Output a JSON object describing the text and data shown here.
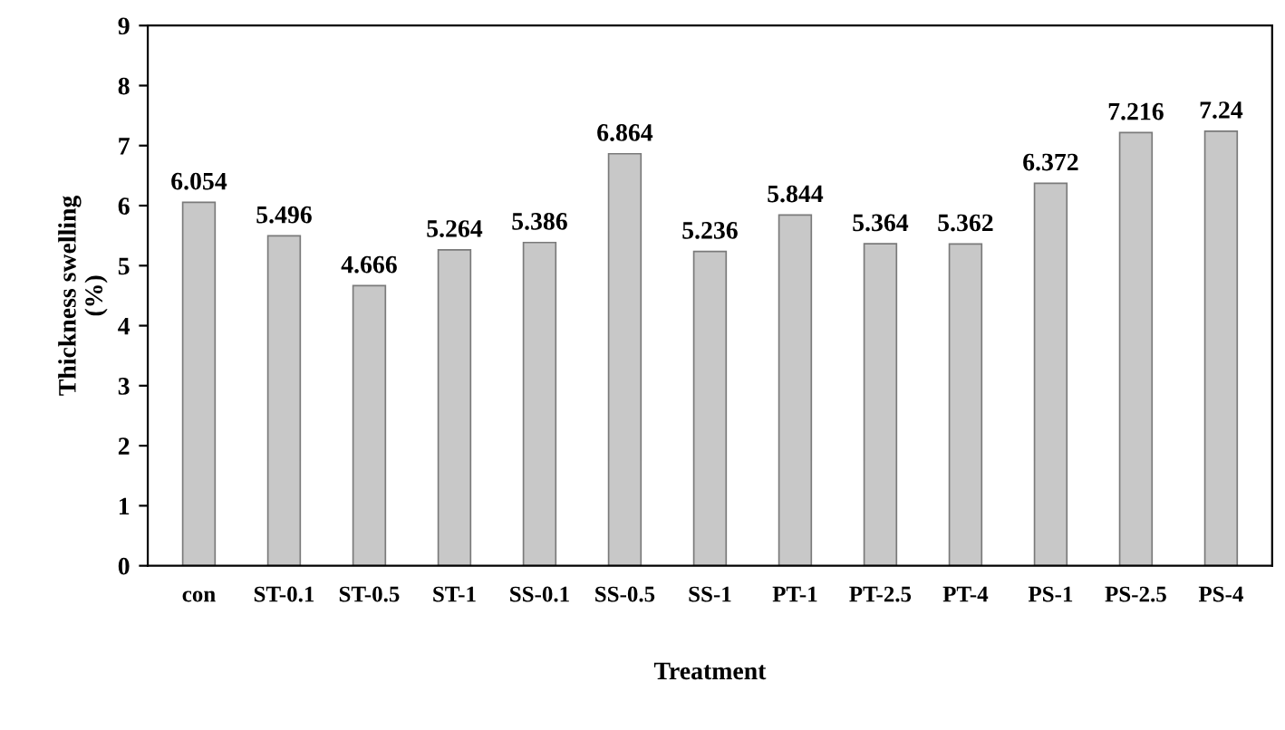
{
  "chart_data": {
    "type": "bar",
    "xlabel": "Treatment",
    "ylabel": "Thickness swelling\n(%)",
    "categories": [
      "con",
      "ST-0.1",
      "ST-0.5",
      "ST-1",
      "SS-0.1",
      "SS-0.5",
      "SS-1",
      "PT-1",
      "PT-2.5",
      "PT-4",
      "PS-1",
      "PS-2.5",
      "PS-4"
    ],
    "values": [
      6.054,
      5.496,
      4.666,
      5.264,
      5.386,
      6.864,
      5.236,
      5.844,
      5.364,
      5.362,
      6.372,
      7.216,
      7.24
    ],
    "color": "#c8c8c8",
    "ylim": [
      0,
      9
    ],
    "yticks": [
      0,
      1,
      2,
      3,
      4,
      5,
      6,
      7,
      8,
      9
    ],
    "data_labels": true,
    "grid": false,
    "legend": false
  }
}
